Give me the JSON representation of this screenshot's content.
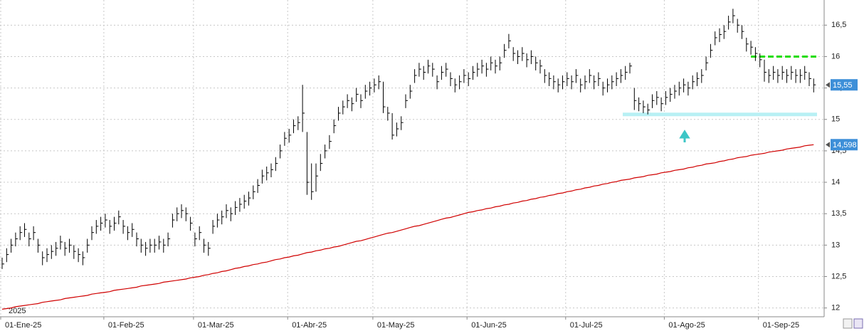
{
  "chart_data": {
    "type": "ohlc",
    "year_label": "2025",
    "categories": [
      "01-Ene-25",
      null,
      null,
      null,
      null,
      null,
      null,
      null,
      null,
      null,
      null,
      null,
      null,
      null,
      null,
      null,
      null,
      null,
      null,
      null,
      null,
      null,
      null,
      "01-Feb-25",
      null,
      null,
      null,
      null,
      null,
      null,
      null,
      null,
      null,
      null,
      null,
      null,
      null,
      null,
      null,
      null,
      null,
      null,
      null,
      "01-Mar-25",
      null,
      null,
      null,
      null,
      null,
      null,
      null,
      null,
      null,
      null,
      null,
      null,
      null,
      null,
      null,
      null,
      null,
      null,
      null,
      null,
      "01-Abr-25",
      null,
      null,
      null,
      null,
      null,
      null,
      null,
      null,
      null,
      null,
      null,
      null,
      null,
      null,
      null,
      null,
      null,
      null,
      "01-May-25",
      null,
      null,
      null,
      null,
      null,
      null,
      null,
      null,
      null,
      null,
      null,
      null,
      null,
      null,
      null,
      null,
      null,
      null,
      null,
      null,
      "01-Jun-25",
      null,
      null,
      null,
      null,
      null,
      null,
      null,
      null,
      null,
      null,
      null,
      null,
      null,
      null,
      null,
      null,
      null,
      null,
      null,
      null,
      null,
      "01-Jul-25",
      null,
      null,
      null,
      null,
      null,
      null,
      null,
      null,
      null,
      null,
      null,
      null,
      null,
      null,
      null,
      null,
      null,
      null,
      null,
      null,
      null,
      "01-Ago-25",
      null,
      null,
      null,
      null,
      null,
      null,
      null,
      null,
      null,
      null,
      null,
      null,
      null,
      null,
      null,
      null,
      null,
      null,
      null,
      null,
      "01-Sep-25",
      null,
      null,
      null,
      null,
      null,
      null,
      null,
      null,
      null,
      null,
      null,
      null
    ],
    "high": [
      12.8,
      12.95,
      13.1,
      13.2,
      13.3,
      13.35,
      13.2,
      13.3,
      13.1,
      12.9,
      12.95,
      13.0,
      13.05,
      13.15,
      13.05,
      13.1,
      13.0,
      12.95,
      12.9,
      13.1,
      13.3,
      13.4,
      13.45,
      13.5,
      13.4,
      13.45,
      13.55,
      13.4,
      13.3,
      13.35,
      13.2,
      13.1,
      13.05,
      13.1,
      13.1,
      13.15,
      13.1,
      13.2,
      13.5,
      13.6,
      13.65,
      13.6,
      13.45,
      13.2,
      13.3,
      13.1,
      13.05,
      13.4,
      13.5,
      13.55,
      13.65,
      13.6,
      13.7,
      13.75,
      13.8,
      13.85,
      13.95,
      14.05,
      14.2,
      14.25,
      14.3,
      14.4,
      14.6,
      14.8,
      14.85,
      15.0,
      15.05,
      15.55,
      14.8,
      14.3,
      14.3,
      14.45,
      14.6,
      14.75,
      15.0,
      15.2,
      15.3,
      15.4,
      15.35,
      15.5,
      15.4,
      15.55,
      15.6,
      15.65,
      15.7,
      15.6,
      15.2,
      15.1,
      14.95,
      15.05,
      15.4,
      15.55,
      15.8,
      15.9,
      15.85,
      15.95,
      15.9,
      15.7,
      15.85,
      15.9,
      15.75,
      15.65,
      15.7,
      15.8,
      15.75,
      15.85,
      15.9,
      15.95,
      15.9,
      16.0,
      15.95,
      16.0,
      16.2,
      16.36,
      16.15,
      16.1,
      16.15,
      16.05,
      16.1,
      16.0,
      15.95,
      15.8,
      15.75,
      15.7,
      15.65,
      15.7,
      15.75,
      15.7,
      15.8,
      15.65,
      15.7,
      15.8,
      15.7,
      15.75,
      15.6,
      15.65,
      15.7,
      15.75,
      15.8,
      15.85,
      15.9,
      15.5,
      15.35,
      15.3,
      15.25,
      15.4,
      15.45,
      15.35,
      15.45,
      15.5,
      15.55,
      15.6,
      15.65,
      15.6,
      15.7,
      15.75,
      15.8,
      16.0,
      16.2,
      16.4,
      16.45,
      16.5,
      16.65,
      16.76,
      16.6,
      16.5,
      16.3,
      16.25,
      16.15,
      16.05,
      15.95,
      15.8,
      15.85,
      15.8,
      15.85,
      15.8,
      15.85,
      15.8,
      15.8,
      15.85,
      15.75,
      15.65
    ],
    "low": [
      12.62,
      12.73,
      12.88,
      12.98,
      13.08,
      13.13,
      12.98,
      13.08,
      12.88,
      12.68,
      12.73,
      12.78,
      12.83,
      12.93,
      12.83,
      12.88,
      12.78,
      12.73,
      12.68,
      12.88,
      13.08,
      13.18,
      13.23,
      13.28,
      13.18,
      13.23,
      13.33,
      13.18,
      13.08,
      13.13,
      12.98,
      12.88,
      12.83,
      12.88,
      12.88,
      12.93,
      12.88,
      12.98,
      13.28,
      13.38,
      13.43,
      13.38,
      13.23,
      12.98,
      13.08,
      12.88,
      12.83,
      13.18,
      13.28,
      13.33,
      13.43,
      13.38,
      13.48,
      13.53,
      13.58,
      13.63,
      13.73,
      13.83,
      13.98,
      14.03,
      14.08,
      14.18,
      14.38,
      14.58,
      14.63,
      14.78,
      14.83,
      14.8,
      13.8,
      13.72,
      13.85,
      14.18,
      14.38,
      14.53,
      14.78,
      14.98,
      15.08,
      15.18,
      15.13,
      15.28,
      15.18,
      15.33,
      15.38,
      15.43,
      15.48,
      15.1,
      14.98,
      14.68,
      14.73,
      14.83,
      15.18,
      15.33,
      15.58,
      15.68,
      15.63,
      15.73,
      15.68,
      15.48,
      15.63,
      15.68,
      15.53,
      15.43,
      15.48,
      15.58,
      15.53,
      15.63,
      15.68,
      15.73,
      15.68,
      15.78,
      15.73,
      15.78,
      15.98,
      16.13,
      15.93,
      15.88,
      15.93,
      15.83,
      15.88,
      15.78,
      15.73,
      15.58,
      15.53,
      15.48,
      15.43,
      15.48,
      15.53,
      15.48,
      15.58,
      15.43,
      15.48,
      15.58,
      15.48,
      15.53,
      15.38,
      15.43,
      15.48,
      15.53,
      15.58,
      15.63,
      15.73,
      15.15,
      15.13,
      15.1,
      15.08,
      15.18,
      15.23,
      15.13,
      15.23,
      15.28,
      15.33,
      15.38,
      15.43,
      15.38,
      15.48,
      15.53,
      15.58,
      15.78,
      15.98,
      16.18,
      16.23,
      16.28,
      16.43,
      16.53,
      16.38,
      16.28,
      16.08,
      16.03,
      15.93,
      15.83,
      15.6,
      15.58,
      15.63,
      15.58,
      15.63,
      15.58,
      15.63,
      15.58,
      15.58,
      15.63,
      15.53,
      15.43
    ],
    "close": [
      12.7,
      12.85,
      13.0,
      13.1,
      13.2,
      13.25,
      13.1,
      13.2,
      13.0,
      12.8,
      12.85,
      12.9,
      12.95,
      13.05,
      12.95,
      13.0,
      12.9,
      12.85,
      12.8,
      13.0,
      13.2,
      13.3,
      13.35,
      13.4,
      13.3,
      13.35,
      13.45,
      13.3,
      13.2,
      13.25,
      13.1,
      13.0,
      12.95,
      13.0,
      13.0,
      13.05,
      13.0,
      13.1,
      13.4,
      13.5,
      13.55,
      13.5,
      13.35,
      13.1,
      13.2,
      13.0,
      12.95,
      13.3,
      13.4,
      13.45,
      13.55,
      13.5,
      13.6,
      13.65,
      13.7,
      13.75,
      13.85,
      13.95,
      14.1,
      14.15,
      14.2,
      14.3,
      14.5,
      14.7,
      14.75,
      14.9,
      14.95,
      15.1,
      14.0,
      13.85,
      14.1,
      14.3,
      14.5,
      14.65,
      14.9,
      15.1,
      15.2,
      15.3,
      15.25,
      15.4,
      15.3,
      15.45,
      15.5,
      15.55,
      15.6,
      15.2,
      15.1,
      14.75,
      14.85,
      14.95,
      15.3,
      15.45,
      15.7,
      15.8,
      15.75,
      15.85,
      15.8,
      15.6,
      15.75,
      15.8,
      15.65,
      15.55,
      15.6,
      15.7,
      15.65,
      15.75,
      15.8,
      15.85,
      15.8,
      15.9,
      15.85,
      15.9,
      16.1,
      16.25,
      16.05,
      16.0,
      16.05,
      15.95,
      16.0,
      15.9,
      15.85,
      15.7,
      15.65,
      15.6,
      15.55,
      15.6,
      15.65,
      15.6,
      15.7,
      15.55,
      15.6,
      15.7,
      15.6,
      15.65,
      15.5,
      15.55,
      15.6,
      15.65,
      15.7,
      15.75,
      15.85,
      15.3,
      15.25,
      15.2,
      15.15,
      15.3,
      15.35,
      15.25,
      15.35,
      15.4,
      15.45,
      15.5,
      15.55,
      15.5,
      15.6,
      15.65,
      15.7,
      15.9,
      16.1,
      16.3,
      16.35,
      16.4,
      16.55,
      16.65,
      16.5,
      16.4,
      16.2,
      16.15,
      16.05,
      15.95,
      15.75,
      15.7,
      15.75,
      15.7,
      15.75,
      15.7,
      15.75,
      15.7,
      15.7,
      15.75,
      15.65,
      15.55
    ],
    "close_last_label": "15,55",
    "bar_color": "#000000",
    "moving_average": {
      "color": "#d00000",
      "last_label": "14,598",
      "values": [
        11.98,
        11.99,
        12.0,
        12.02,
        12.03,
        12.04,
        12.05,
        12.06,
        12.07,
        12.09,
        12.1,
        12.11,
        12.12,
        12.13,
        12.15,
        12.16,
        12.17,
        12.18,
        12.19,
        12.2,
        12.22,
        12.23,
        12.24,
        12.25,
        12.26,
        12.28,
        12.29,
        12.3,
        12.31,
        12.32,
        12.33,
        12.35,
        12.36,
        12.37,
        12.38,
        12.39,
        12.41,
        12.42,
        12.43,
        12.44,
        12.45,
        12.46,
        12.48,
        12.49,
        12.5,
        12.52,
        12.53,
        12.55,
        12.56,
        12.58,
        12.59,
        12.61,
        12.63,
        12.64,
        12.66,
        12.67,
        12.69,
        12.7,
        12.72,
        12.73,
        12.75,
        12.77,
        12.78,
        12.8,
        12.81,
        12.83,
        12.84,
        12.86,
        12.88,
        12.89,
        12.91,
        12.92,
        12.94,
        12.95,
        12.97,
        12.98,
        13.0,
        13.02,
        13.04,
        13.06,
        13.07,
        13.09,
        13.11,
        13.13,
        13.15,
        13.17,
        13.19,
        13.2,
        13.22,
        13.24,
        13.26,
        13.28,
        13.3,
        13.31,
        13.33,
        13.35,
        13.37,
        13.39,
        13.41,
        13.43,
        13.44,
        13.46,
        13.48,
        13.5,
        13.52,
        13.53,
        13.55,
        13.56,
        13.58,
        13.59,
        13.61,
        13.62,
        13.64,
        13.65,
        13.67,
        13.68,
        13.7,
        13.71,
        13.73,
        13.74,
        13.76,
        13.77,
        13.79,
        13.8,
        13.82,
        13.83,
        13.85,
        13.86,
        13.88,
        13.89,
        13.91,
        13.92,
        13.94,
        13.95,
        13.97,
        13.98,
        14.0,
        14.01,
        14.03,
        14.04,
        14.05,
        14.07,
        14.08,
        14.09,
        14.11,
        14.12,
        14.13,
        14.15,
        14.16,
        14.17,
        14.19,
        14.2,
        14.21,
        14.23,
        14.24,
        14.26,
        14.27,
        14.29,
        14.3,
        14.31,
        14.33,
        14.34,
        14.36,
        14.37,
        14.39,
        14.4,
        14.41,
        14.43,
        14.44,
        14.45,
        14.46,
        14.48,
        14.49,
        14.5,
        14.51,
        14.53,
        14.54,
        14.55,
        14.56,
        14.58,
        14.59,
        14.598
      ]
    },
    "resistance": {
      "value": 16.0,
      "color": "#22dd00"
    },
    "support": {
      "value": 15.08,
      "color": "#b8f0f4"
    },
    "ylim": [
      11.86,
      16.9
    ],
    "yticks": [
      12,
      {
        "value": 12.5,
        "label": "12,5"
      },
      13,
      {
        "value": 13.5,
        "label": "13,5"
      },
      14,
      {
        "value": 14.5,
        "label": "14,5"
      },
      15,
      {
        "value": 15.5,
        "label": "15,5"
      },
      16,
      {
        "value": 16.5,
        "label": "16,5"
      }
    ],
    "grid": true
  }
}
